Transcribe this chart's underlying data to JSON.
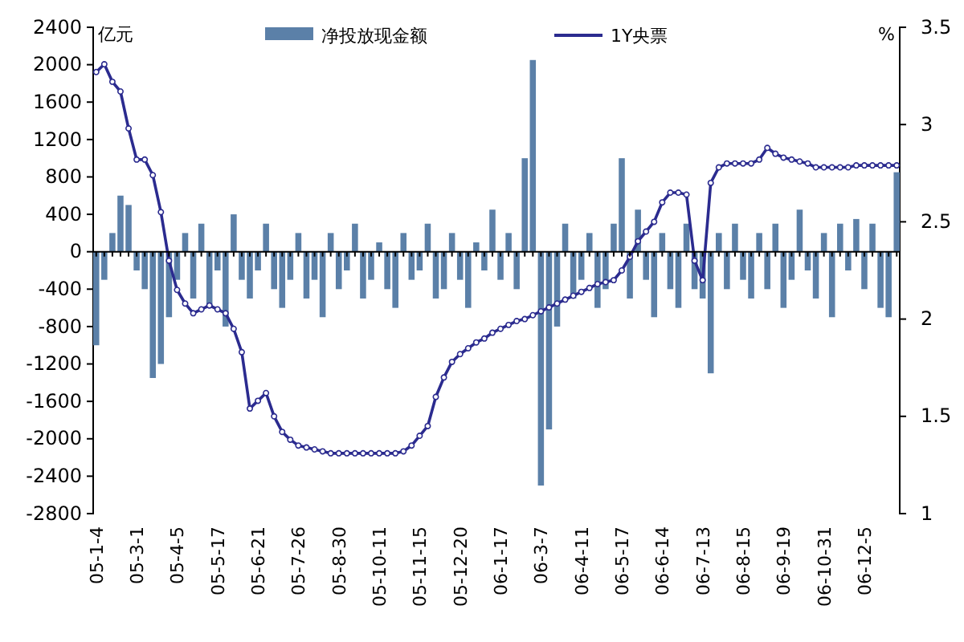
{
  "chart_data": {
    "type": "bar",
    "ylabel": "亿元",
    "y2label": "%",
    "categories": [
      "05-1-4",
      null,
      null,
      null,
      null,
      "05-3-1",
      null,
      null,
      null,
      null,
      "05-4-5",
      null,
      null,
      null,
      null,
      "05-5-17",
      null,
      null,
      null,
      null,
      "05-6-21",
      null,
      null,
      null,
      null,
      "05-7-26",
      null,
      null,
      null,
      null,
      "05-8-30",
      null,
      null,
      null,
      null,
      "05-10-11",
      null,
      null,
      null,
      null,
      "05-11-15",
      null,
      null,
      null,
      null,
      "05-12-20",
      null,
      null,
      null,
      null,
      "06-1-17",
      null,
      null,
      null,
      null,
      "06-3-7",
      null,
      null,
      null,
      null,
      "06-4-11",
      null,
      null,
      null,
      null,
      "06-5-17",
      null,
      null,
      null,
      null,
      "06-6-14",
      null,
      null,
      null,
      null,
      "06-7-13",
      null,
      null,
      null,
      null,
      "06-8-15",
      null,
      null,
      null,
      null,
      "06-9-19",
      null,
      null,
      null,
      null,
      "06-10-31",
      null,
      null,
      null,
      null,
      "06-12-5",
      null,
      null,
      null,
      null
    ],
    "series": [
      {
        "name": "净投放现金额",
        "color": "#5b80a8",
        "values": [
          -1000,
          -300,
          200,
          600,
          500,
          -200,
          -400,
          -1350,
          -1200,
          -700,
          -300,
          200,
          -500,
          300,
          -600,
          -200,
          -800,
          400,
          -300,
          -500,
          -200,
          300,
          -400,
          -600,
          -300,
          200,
          -500,
          -300,
          -700,
          200,
          -400,
          -200,
          300,
          -500,
          -300,
          100,
          -400,
          -600,
          200,
          -300,
          -200,
          300,
          -500,
          -400,
          200,
          -300,
          -600,
          100,
          -200,
          450,
          -300,
          200,
          -400,
          1000,
          2050,
          -2500,
          -1900,
          -800,
          300,
          -500,
          -300,
          200,
          -600,
          -400,
          300,
          1000,
          -500,
          450,
          -300,
          -700,
          200,
          -400,
          -600,
          300,
          -400,
          -500,
          -1300,
          200,
          -400,
          300,
          -300,
          -500,
          200,
          -400,
          300,
          -600,
          -300,
          450,
          -200,
          -500,
          200,
          -700,
          300,
          -200,
          350,
          -400,
          300,
          -600,
          -700,
          850
        ]
      },
      {
        "name": "1Y央票",
        "type": "line",
        "axis": "y2",
        "color": "#2b2b8f",
        "values": [
          3.27,
          3.31,
          3.22,
          3.17,
          2.98,
          2.82,
          2.82,
          2.74,
          2.55,
          2.3,
          2.15,
          2.08,
          2.03,
          2.05,
          2.07,
          2.05,
          2.03,
          1.95,
          1.83,
          1.54,
          1.58,
          1.62,
          1.5,
          1.42,
          1.38,
          1.35,
          1.34,
          1.33,
          1.32,
          1.31,
          1.31,
          1.31,
          1.31,
          1.31,
          1.31,
          1.31,
          1.31,
          1.31,
          1.32,
          1.35,
          1.4,
          1.45,
          1.6,
          1.7,
          1.78,
          1.82,
          1.85,
          1.88,
          1.9,
          1.93,
          1.95,
          1.97,
          1.99,
          2.0,
          2.02,
          2.04,
          2.06,
          2.08,
          2.1,
          2.12,
          2.14,
          2.16,
          2.18,
          2.19,
          2.2,
          2.25,
          2.32,
          2.4,
          2.45,
          2.5,
          2.6,
          2.65,
          2.65,
          2.64,
          2.3,
          2.2,
          2.7,
          2.78,
          2.8,
          2.8,
          2.8,
          2.8,
          2.82,
          2.88,
          2.85,
          2.83,
          2.82,
          2.81,
          2.8,
          2.78,
          2.78,
          2.78,
          2.78,
          2.78,
          2.79,
          2.79,
          2.79,
          2.79,
          2.79,
          2.79
        ]
      }
    ],
    "ylim": [
      -2800,
      2400
    ],
    "yticks": [
      -2800,
      -2400,
      -2000,
      -1600,
      -1200,
      -800,
      -400,
      0,
      400,
      800,
      1200,
      1600,
      2000,
      2400
    ],
    "y2lim": [
      1,
      3.5
    ],
    "y2ticks": [
      1,
      1.5,
      2,
      2.5,
      3,
      3.5
    ],
    "legend": "top",
    "marker": "circle",
    "line_style": "solid"
  }
}
